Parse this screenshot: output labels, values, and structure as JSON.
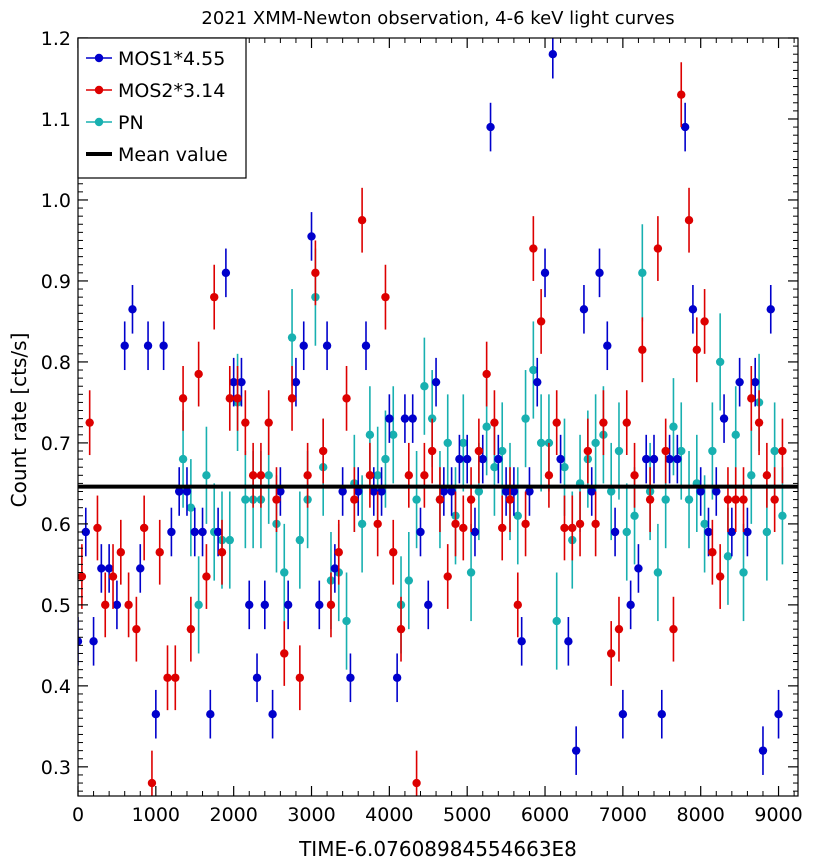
{
  "chart_data": {
    "type": "scatter",
    "title": "2021 XMM-Newton observation, 4-6 keV light curves",
    "xlabel": "TIME-6.07608984554663E8",
    "ylabel": "Count rate [cts/s]",
    "xlim": [
      0,
      9250
    ],
    "ylim": [
      0.264,
      1.2
    ],
    "xticks": [
      0,
      1000,
      2000,
      3000,
      4000,
      5000,
      6000,
      7000,
      8000,
      9000
    ],
    "yticks": [
      0.3,
      0.4,
      0.5,
      0.6,
      0.7,
      0.8,
      0.9,
      1.0,
      1.1,
      1.2
    ],
    "ytick_labels": [
      "0.3",
      "0.4",
      "0.5",
      "0.6",
      "0.7",
      "0.8",
      "0.9",
      "1.0",
      "1.1",
      "1.2"
    ],
    "mean_value": 0.646,
    "legend_position": "top-left",
    "series": [
      {
        "name": "MOS1*4.55",
        "color": "#0000cc",
        "marker": "circle",
        "x": [
          0,
          100,
          200,
          300,
          400,
          500,
          600,
          700,
          800,
          900,
          1000,
          1100,
          1200,
          1300,
          1400,
          1500,
          1600,
          1700,
          1800,
          1900,
          2000,
          2100,
          2200,
          2300,
          2400,
          2500,
          2600,
          2700,
          2800,
          2900,
          3000,
          3100,
          3200,
          3300,
          3400,
          3500,
          3600,
          3700,
          3800,
          3900,
          4000,
          4100,
          4200,
          4300,
          4400,
          4500,
          4600,
          4700,
          4800,
          4900,
          5000,
          5100,
          5200,
          5300,
          5400,
          5500,
          5600,
          5700,
          5800,
          5900,
          6000,
          6100,
          6200,
          6300,
          6400,
          6500,
          6600,
          6700,
          6800,
          6900,
          7000,
          7100,
          7200,
          7300,
          7400,
          7500,
          7600,
          7700,
          7800,
          7900,
          8000,
          8100,
          8200,
          8300,
          8400,
          8500,
          8600,
          8700,
          8800,
          8900,
          9000
        ],
        "y": [
          0.455,
          0.59,
          0.455,
          0.545,
          0.545,
          0.5,
          0.82,
          0.865,
          0.545,
          0.82,
          0.365,
          0.82,
          0.59,
          0.64,
          0.64,
          0.59,
          0.59,
          0.365,
          0.59,
          0.91,
          0.775,
          0.775,
          0.5,
          0.41,
          0.5,
          0.365,
          0.64,
          0.5,
          0.775,
          0.82,
          0.955,
          0.5,
          0.82,
          0.545,
          0.64,
          0.41,
          0.64,
          0.82,
          0.64,
          0.64,
          0.73,
          0.41,
          0.73,
          0.73,
          0.59,
          0.5,
          0.775,
          0.64,
          0.64,
          0.68,
          0.68,
          0.59,
          0.68,
          1.09,
          0.68,
          0.64,
          0.64,
          0.455,
          0.64,
          0.775,
          0.91,
          1.18,
          0.68,
          0.455,
          0.32,
          0.865,
          0.64,
          0.91,
          0.82,
          0.59,
          0.365,
          0.5,
          0.545,
          0.68,
          0.68,
          0.365,
          0.68,
          0.68,
          1.09,
          0.865,
          0.64,
          0.59,
          0.64,
          0.73,
          0.59,
          0.775,
          0.59,
          0.775,
          0.32,
          0.865,
          0.365
        ],
        "err": [
          0.03,
          0.03,
          0.03,
          0.03,
          0.03,
          0.03,
          0.03,
          0.03,
          0.03,
          0.03,
          0.03,
          0.03,
          0.03,
          0.03,
          0.03,
          0.03,
          0.03,
          0.03,
          0.03,
          0.03,
          0.03,
          0.03,
          0.03,
          0.03,
          0.03,
          0.03,
          0.03,
          0.03,
          0.03,
          0.03,
          0.03,
          0.03,
          0.03,
          0.03,
          0.03,
          0.03,
          0.03,
          0.03,
          0.03,
          0.03,
          0.03,
          0.03,
          0.03,
          0.03,
          0.03,
          0.03,
          0.03,
          0.03,
          0.03,
          0.03,
          0.03,
          0.03,
          0.03,
          0.03,
          0.03,
          0.03,
          0.03,
          0.03,
          0.03,
          0.03,
          0.03,
          0.03,
          0.03,
          0.03,
          0.03,
          0.03,
          0.03,
          0.03,
          0.03,
          0.03,
          0.03,
          0.03,
          0.03,
          0.03,
          0.03,
          0.03,
          0.03,
          0.03,
          0.03,
          0.03,
          0.03,
          0.03,
          0.03,
          0.03,
          0.03,
          0.03,
          0.03,
          0.03,
          0.03,
          0.03,
          0.03
        ]
      },
      {
        "name": "MOS2*3.14",
        "color": "#dd0000",
        "marker": "circle",
        "x": [
          50,
          150,
          250,
          350,
          450,
          550,
          650,
          750,
          850,
          950,
          1050,
          1150,
          1250,
          1350,
          1450,
          1550,
          1650,
          1750,
          1850,
          1950,
          2050,
          2150,
          2250,
          2350,
          2450,
          2550,
          2650,
          2750,
          2850,
          2950,
          3050,
          3150,
          3250,
          3350,
          3450,
          3550,
          3650,
          3750,
          3850,
          3950,
          4050,
          4150,
          4250,
          4350,
          4450,
          4550,
          4650,
          4750,
          4850,
          4950,
          5050,
          5150,
          5250,
          5350,
          5450,
          5550,
          5650,
          5750,
          5850,
          5950,
          6050,
          6150,
          6250,
          6350,
          6450,
          6550,
          6650,
          6750,
          6850,
          6950,
          7050,
          7150,
          7250,
          7350,
          7450,
          7550,
          7650,
          7750,
          7850,
          7950,
          8050,
          8150,
          8250,
          8350,
          8450,
          8550,
          8650,
          8750,
          8850,
          8950,
          9050
        ],
        "y": [
          0.535,
          0.725,
          0.595,
          0.5,
          0.535,
          0.565,
          0.5,
          0.47,
          0.595,
          0.28,
          0.565,
          0.41,
          0.41,
          0.755,
          0.47,
          0.785,
          0.535,
          0.88,
          0.565,
          0.755,
          0.755,
          0.725,
          0.66,
          0.66,
          0.725,
          0.63,
          0.44,
          0.755,
          0.41,
          0.66,
          0.91,
          0.69,
          0.5,
          0.565,
          0.755,
          0.63,
          0.975,
          0.66,
          0.6,
          0.88,
          0.565,
          0.47,
          0.66,
          0.28,
          0.66,
          0.69,
          0.63,
          0.535,
          0.6,
          0.595,
          0.63,
          0.69,
          0.785,
          0.725,
          0.595,
          0.63,
          0.5,
          0.6,
          0.94,
          0.85,
          0.66,
          0.725,
          0.595,
          0.595,
          0.6,
          0.69,
          0.6,
          0.725,
          0.44,
          0.47,
          0.725,
          0.66,
          0.815,
          0.63,
          0.94,
          0.69,
          0.47,
          1.13,
          0.975,
          0.815,
          0.85,
          0.565,
          0.535,
          0.63,
          0.63,
          0.63,
          0.755,
          0.725,
          0.66,
          0.63,
          0.69
        ],
        "err": [
          0.04,
          0.04,
          0.04,
          0.04,
          0.04,
          0.04,
          0.04,
          0.04,
          0.04,
          0.04,
          0.04,
          0.04,
          0.04,
          0.04,
          0.04,
          0.04,
          0.04,
          0.04,
          0.04,
          0.04,
          0.04,
          0.04,
          0.04,
          0.04,
          0.04,
          0.04,
          0.04,
          0.04,
          0.04,
          0.04,
          0.04,
          0.04,
          0.04,
          0.04,
          0.04,
          0.04,
          0.04,
          0.04,
          0.04,
          0.04,
          0.04,
          0.04,
          0.04,
          0.04,
          0.04,
          0.04,
          0.04,
          0.04,
          0.04,
          0.04,
          0.04,
          0.04,
          0.04,
          0.04,
          0.04,
          0.04,
          0.04,
          0.04,
          0.04,
          0.04,
          0.04,
          0.04,
          0.04,
          0.04,
          0.04,
          0.04,
          0.04,
          0.04,
          0.04,
          0.04,
          0.04,
          0.04,
          0.04,
          0.04,
          0.04,
          0.04,
          0.04,
          0.04,
          0.04,
          0.04,
          0.04,
          0.04,
          0.04,
          0.04,
          0.04,
          0.04,
          0.04,
          0.04,
          0.04,
          0.04,
          0.04
        ]
      },
      {
        "name": "PN",
        "color": "#18b0b0",
        "marker": "circle",
        "x": [
          1350,
          1450,
          1550,
          1650,
          1750,
          1850,
          1950,
          2050,
          2150,
          2250,
          2350,
          2450,
          2550,
          2650,
          2750,
          2850,
          2950,
          3050,
          3150,
          3250,
          3350,
          3450,
          3550,
          3650,
          3750,
          3850,
          3950,
          4050,
          4150,
          4250,
          4350,
          4450,
          4550,
          4650,
          4750,
          4850,
          4950,
          5050,
          5150,
          5250,
          5350,
          5450,
          5550,
          5650,
          5750,
          5850,
          5950,
          6050,
          6150,
          6250,
          6350,
          6450,
          6550,
          6650,
          6750,
          6850,
          6950,
          7050,
          7150,
          7250,
          7350,
          7450,
          7550,
          7650,
          7750,
          7850,
          7950,
          8050,
          8150,
          8250,
          8350,
          8450,
          8550,
          8650,
          8750,
          8850,
          8950,
          9050
        ],
        "y": [
          0.68,
          0.62,
          0.5,
          0.66,
          0.59,
          0.58,
          0.58,
          0.75,
          0.63,
          0.63,
          0.63,
          0.66,
          0.6,
          0.54,
          0.83,
          0.58,
          0.63,
          0.88,
          0.67,
          0.53,
          0.54,
          0.48,
          0.65,
          0.6,
          0.71,
          0.66,
          0.68,
          0.71,
          0.5,
          0.53,
          0.63,
          0.77,
          0.73,
          0.63,
          0.7,
          0.61,
          0.7,
          0.54,
          0.64,
          0.72,
          0.67,
          0.69,
          0.64,
          0.61,
          0.73,
          0.79,
          0.7,
          0.7,
          0.48,
          0.67,
          0.58,
          0.65,
          0.68,
          0.7,
          0.71,
          0.64,
          0.69,
          0.59,
          0.61,
          0.91,
          0.64,
          0.54,
          0.63,
          0.72,
          0.69,
          0.63,
          0.65,
          0.6,
          0.69,
          0.8,
          0.56,
          0.71,
          0.54,
          0.66,
          0.75,
          0.59,
          0.69,
          0.61
        ],
        "err": [
          0.06,
          0.06,
          0.06,
          0.06,
          0.06,
          0.06,
          0.06,
          0.06,
          0.06,
          0.06,
          0.06,
          0.06,
          0.06,
          0.06,
          0.06,
          0.06,
          0.06,
          0.06,
          0.06,
          0.06,
          0.06,
          0.06,
          0.06,
          0.06,
          0.06,
          0.06,
          0.06,
          0.06,
          0.06,
          0.06,
          0.06,
          0.06,
          0.06,
          0.06,
          0.06,
          0.06,
          0.06,
          0.06,
          0.06,
          0.06,
          0.06,
          0.06,
          0.06,
          0.06,
          0.06,
          0.06,
          0.06,
          0.06,
          0.06,
          0.06,
          0.06,
          0.06,
          0.06,
          0.06,
          0.06,
          0.06,
          0.06,
          0.06,
          0.06,
          0.06,
          0.06,
          0.06,
          0.06,
          0.06,
          0.06,
          0.06,
          0.06,
          0.06,
          0.06,
          0.06,
          0.06,
          0.06,
          0.06,
          0.06,
          0.06,
          0.06,
          0.06,
          0.06
        ]
      }
    ],
    "legend": [
      {
        "label": "MOS1*4.55",
        "color": "#0000cc",
        "kind": "marker"
      },
      {
        "label": "MOS2*3.14",
        "color": "#dd0000",
        "kind": "marker"
      },
      {
        "label": "PN",
        "color": "#18b0b0",
        "kind": "marker"
      },
      {
        "label": "Mean value",
        "color": "#000000",
        "kind": "line"
      }
    ]
  }
}
